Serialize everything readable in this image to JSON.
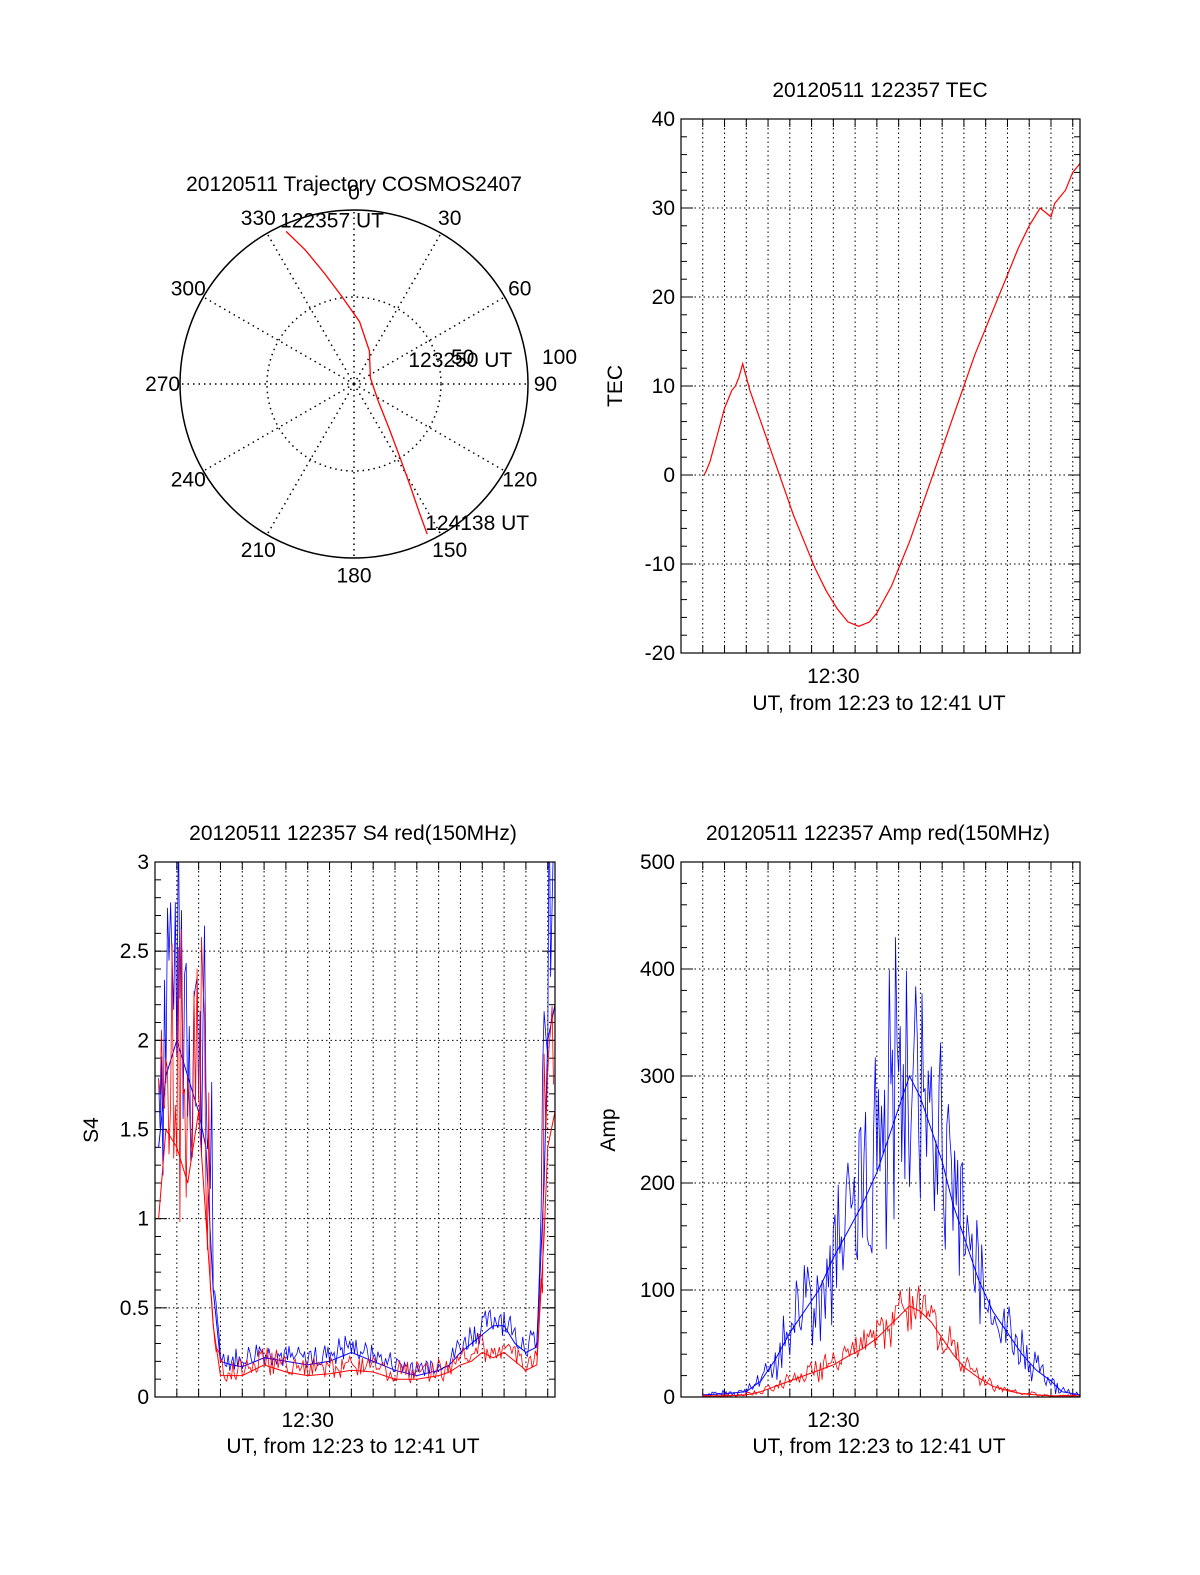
{
  "colors": {
    "red": "#ff0000",
    "blue": "#0000ff",
    "axis": "#000000",
    "grid": "#000000"
  },
  "chart_data": [
    {
      "type": "polar",
      "title": "20120511 Trajectory COSMOS2407",
      "rlim": [
        0,
        100
      ],
      "azimuth_labels": [
        {
          "deg": 0,
          "text": "0"
        },
        {
          "deg": 30,
          "text": "30"
        },
        {
          "deg": 60,
          "text": "60"
        },
        {
          "deg": 90,
          "text": "90"
        },
        {
          "deg": 120,
          "text": "120"
        },
        {
          "deg": 150,
          "text": "150"
        },
        {
          "deg": 180,
          "text": "180"
        },
        {
          "deg": 210,
          "text": "210"
        },
        {
          "deg": 240,
          "text": "240"
        },
        {
          "deg": 270,
          "text": "270"
        },
        {
          "deg": 300,
          "text": "300"
        },
        {
          "deg": 330,
          "text": "330"
        }
      ],
      "radial_labels": [
        {
          "r": 50,
          "text": "50"
        },
        {
          "r": 100,
          "text": "100"
        }
      ],
      "trajectory": [
        {
          "az": 336,
          "r": 96
        },
        {
          "az": 340,
          "r": 82
        },
        {
          "az": 345,
          "r": 66
        },
        {
          "az": 352,
          "r": 51
        },
        {
          "az": 5,
          "r": 36
        },
        {
          "az": 25,
          "r": 21
        },
        {
          "az": 70,
          "r": 10
        },
        {
          "az": 125,
          "r": 17
        },
        {
          "az": 142,
          "r": 33
        },
        {
          "az": 148,
          "r": 50
        },
        {
          "az": 151,
          "r": 66
        },
        {
          "az": 153,
          "r": 82
        },
        {
          "az": 154,
          "r": 96
        }
      ],
      "point_labels": [
        {
          "az": 336,
          "r": 96,
          "text": "122357 UT"
        },
        {
          "az": 70,
          "r": 10,
          "text": "123250 UT"
        },
        {
          "az": 154,
          "r": 96,
          "text": "124138 UT"
        }
      ]
    },
    {
      "type": "line",
      "title": "20120511 122357 TEC",
      "xlabel": "UT, from 12:23 to 12:41 UT",
      "ylabel": "TEC",
      "xlim": [
        "12:23:00",
        "12:41:20"
      ],
      "ylim": [
        -20,
        40
      ],
      "yticks": [
        -20,
        -10,
        0,
        10,
        20,
        30,
        40
      ],
      "xtick_labels": [
        {
          "t": "12:30:00",
          "text": "12:30"
        }
      ],
      "grid": true,
      "series": [
        {
          "color": "#ff0000",
          "x": [
            "12:24:04",
            "12:24:10",
            "12:24:20",
            "12:24:30",
            "12:24:40",
            "12:24:50",
            "12:25:00",
            "12:25:10",
            "12:25:20",
            "12:25:30",
            "12:25:40",
            "12:25:50",
            "12:26:10",
            "12:26:40",
            "12:27:10",
            "12:27:40",
            "12:28:10",
            "12:28:40",
            "12:29:10",
            "12:29:40",
            "12:30:10",
            "12:30:40",
            "12:31:10",
            "12:31:40",
            "12:32:00",
            "12:32:20",
            "12:32:40",
            "12:33:00",
            "12:33:30",
            "12:34:00",
            "12:34:30",
            "12:35:00",
            "12:35:30",
            "12:36:00",
            "12:36:30",
            "12:37:00",
            "12:37:30",
            "12:38:00",
            "12:38:30",
            "12:39:00",
            "12:39:30",
            "12:40:00",
            "12:40:10",
            "12:40:20",
            "12:40:40",
            "12:41:00",
            "12:41:20"
          ],
          "y": [
            0,
            0.5,
            1.5,
            3,
            4.5,
            6,
            7.5,
            8.5,
            9.5,
            10,
            11,
            12.5,
            9.5,
            6,
            2.5,
            -1,
            -4.5,
            -7.5,
            -10.5,
            -13,
            -15,
            -16.5,
            -17,
            -16.5,
            -15.5,
            -14,
            -12.5,
            -10.5,
            -7.5,
            -4,
            -0.5,
            3,
            6.5,
            10,
            13.5,
            16.5,
            19.5,
            22.5,
            25.5,
            28,
            30,
            29,
            30.5,
            31,
            32,
            34,
            35
          ]
        }
      ]
    },
    {
      "type": "line",
      "title": "20120511 122357 S4 red(150MHz)",
      "xlabel": "UT, from 12:23 to 12:41 UT",
      "ylabel": "S4",
      "xlim": [
        "12:23:00",
        "12:41:20"
      ],
      "ylim": [
        0,
        3
      ],
      "yticks": [
        0,
        0.5,
        1,
        1.5,
        2,
        2.5,
        3
      ],
      "ytick_labels": [
        "0",
        "0.5",
        "1",
        "1.5",
        "2",
        "2.5",
        "3"
      ],
      "xtick_labels": [
        {
          "t": "12:30:00",
          "text": "12:30"
        }
      ],
      "grid": true,
      "series": [
        {
          "color": "#0000ff",
          "x": [
            "12:23:10",
            "12:23:30",
            "12:24:00",
            "12:24:30",
            "12:25:00",
            "12:25:20",
            "12:25:40",
            "12:26:00",
            "12:26:30",
            "12:27:00",
            "12:28:00",
            "12:29:00",
            "12:30:00",
            "12:31:00",
            "12:32:00",
            "12:33:00",
            "12:34:00",
            "12:35:00",
            "12:36:00",
            "12:36:30",
            "12:37:00",
            "12:37:30",
            "12:38:00",
            "12:38:30",
            "12:39:00",
            "12:39:30",
            "12:40:00",
            "12:40:30",
            "12:40:50",
            "12:41:00",
            "12:41:20"
          ],
          "y": [
            1.4,
            1.8,
            2.0,
            1.8,
            1.6,
            1.4,
            0.6,
            0.2,
            0.18,
            0.17,
            0.22,
            0.2,
            0.18,
            0.2,
            0.25,
            0.2,
            0.15,
            0.12,
            0.15,
            0.18,
            0.25,
            0.3,
            0.35,
            0.4,
            0.4,
            0.3,
            0.25,
            0.28,
            1.2,
            2.0,
            2.2
          ]
        },
        {
          "color": "#ff0000",
          "x": [
            "12:23:10",
            "12:23:30",
            "12:24:00",
            "12:24:30",
            "12:25:00",
            "12:25:20",
            "12:25:40",
            "12:26:00",
            "12:26:30",
            "12:27:00",
            "12:28:00",
            "12:29:00",
            "12:30:00",
            "12:31:00",
            "12:32:00",
            "12:33:00",
            "12:34:00",
            "12:35:00",
            "12:36:00",
            "12:36:30",
            "12:37:00",
            "12:37:30",
            "12:38:00",
            "12:38:30",
            "12:39:00",
            "12:39:30",
            "12:40:00",
            "12:40:30",
            "12:40:50",
            "12:41:00",
            "12:41:20"
          ],
          "y": [
            1.0,
            1.5,
            1.4,
            1.2,
            1.6,
            1.0,
            0.4,
            0.12,
            0.12,
            0.12,
            0.18,
            0.14,
            0.12,
            0.13,
            0.15,
            0.14,
            0.1,
            0.1,
            0.12,
            0.14,
            0.18,
            0.2,
            0.25,
            0.22,
            0.25,
            0.2,
            0.15,
            0.18,
            0.9,
            1.4,
            1.6
          ]
        }
      ]
    },
    {
      "type": "line",
      "title": "20120511 122357 Amp red(150MHz)",
      "xlabel": "UT, from 12:23 to 12:41 UT",
      "ylabel": "Amp",
      "xlim": [
        "12:23:00",
        "12:41:20"
      ],
      "ylim": [
        0,
        500
      ],
      "yticks": [
        0,
        100,
        200,
        300,
        400,
        500
      ],
      "xtick_labels": [
        {
          "t": "12:30:00",
          "text": "12:30"
        }
      ],
      "grid": true,
      "series": [
        {
          "color": "#0000ff",
          "x": [
            "12:24:00",
            "12:25:00",
            "12:26:00",
            "12:26:40",
            "12:27:20",
            "12:28:00",
            "12:28:40",
            "12:29:20",
            "12:30:00",
            "12:30:40",
            "12:31:20",
            "12:32:00",
            "12:32:30",
            "12:33:00",
            "12:33:30",
            "12:34:00",
            "12:34:30",
            "12:35:00",
            "12:35:30",
            "12:36:00",
            "12:36:40",
            "12:37:20",
            "12:38:00",
            "12:38:40",
            "12:39:20",
            "12:40:00",
            "12:40:30",
            "12:41:20"
          ],
          "y": [
            2,
            3,
            5,
            15,
            35,
            60,
            80,
            100,
            130,
            155,
            180,
            210,
            240,
            270,
            300,
            280,
            250,
            220,
            180,
            150,
            110,
            80,
            60,
            40,
            25,
            15,
            5,
            2
          ]
        },
        {
          "color": "#ff0000",
          "x": [
            "12:24:00",
            "12:25:00",
            "12:26:00",
            "12:26:40",
            "12:27:20",
            "12:28:00",
            "12:28:40",
            "12:29:20",
            "12:30:00",
            "12:30:40",
            "12:31:20",
            "12:32:00",
            "12:32:30",
            "12:33:00",
            "12:33:30",
            "12:34:00",
            "12:34:30",
            "12:35:00",
            "12:35:30",
            "12:36:00",
            "12:36:40",
            "12:37:20",
            "12:38:00",
            "12:38:40",
            "12:39:20",
            "12:40:00",
            "12:40:30",
            "12:41:20"
          ],
          "y": [
            1,
            1,
            2,
            5,
            10,
            15,
            20,
            25,
            30,
            38,
            45,
            55,
            65,
            75,
            85,
            80,
            70,
            55,
            40,
            28,
            18,
            10,
            6,
            3,
            2,
            1,
            1,
            1
          ]
        }
      ]
    }
  ]
}
